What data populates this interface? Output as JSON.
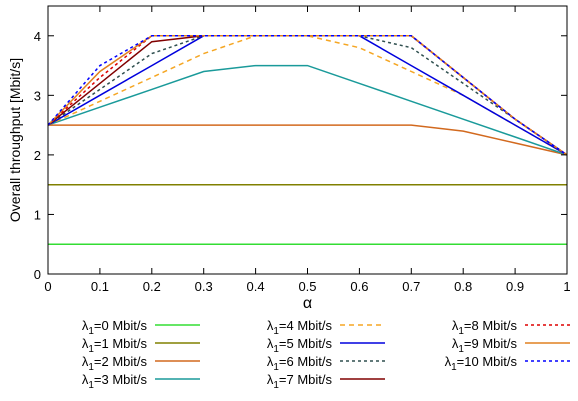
{
  "chart_data": {
    "type": "line",
    "title": "",
    "xlabel": "α",
    "ylabel": "Overall throughput [Mbit/s]",
    "xlim": [
      0,
      1
    ],
    "ylim": [
      0,
      4.5
    ],
    "xticks": [
      "0",
      "0.1",
      "0.2",
      "0.3",
      "0.4",
      "0.5",
      "0.6",
      "0.7",
      "0.8",
      "0.9",
      "1"
    ],
    "yticks": [
      "0",
      "1",
      "2",
      "3",
      "4"
    ],
    "x": [
      0,
      0.1,
      0.2,
      0.3,
      0.4,
      0.5,
      0.6,
      0.7,
      0.8,
      0.9,
      1
    ],
    "grid": false,
    "legend_position": "bottom",
    "series": [
      {
        "name": "λ1=0 Mbit/s",
        "sub": "1",
        "rest": "=0 Mbit/s",
        "color": "#33dd33",
        "dash": "solid",
        "values": [
          0.5,
          0.5,
          0.5,
          0.5,
          0.5,
          0.5,
          0.5,
          0.5,
          0.5,
          0.5,
          0.5
        ]
      },
      {
        "name": "λ1=1 Mbit/s",
        "sub": "1",
        "rest": "=1 Mbit/s",
        "color": "#808000",
        "dash": "solid",
        "values": [
          1.5,
          1.5,
          1.5,
          1.5,
          1.5,
          1.5,
          1.5,
          1.5,
          1.5,
          1.5,
          1.5
        ]
      },
      {
        "name": "λ1=2 Mbit/s",
        "sub": "1",
        "rest": "=2 Mbit/s",
        "color": "#d2691e",
        "dash": "solid",
        "values": [
          2.5,
          2.5,
          2.5,
          2.5,
          2.5,
          2.5,
          2.5,
          2.5,
          2.4,
          2.2,
          2.0
        ]
      },
      {
        "name": "λ1=3 Mbit/s",
        "sub": "1",
        "rest": "=3 Mbit/s",
        "color": "#1a9a9a",
        "dash": "solid",
        "values": [
          2.5,
          2.8,
          3.1,
          3.4,
          3.5,
          3.5,
          3.2,
          2.9,
          2.6,
          2.3,
          2.0
        ]
      },
      {
        "name": "λ1=4 Mbit/s",
        "sub": "1",
        "rest": "=4 Mbit/s",
        "color": "#f5a623",
        "dash": "dashed",
        "values": [
          2.5,
          2.9,
          3.3,
          3.7,
          4.0,
          4.0,
          3.8,
          3.4,
          3.0,
          2.5,
          2.0
        ]
      },
      {
        "name": "λ1=5 Mbit/s",
        "sub": "1",
        "rest": "=5 Mbit/s",
        "color": "#0000dd",
        "dash": "solid",
        "values": [
          2.5,
          3.0,
          3.5,
          4.0,
          4.0,
          4.0,
          4.0,
          3.5,
          3.0,
          2.5,
          2.0
        ]
      },
      {
        "name": "λ1=6 Mbit/s",
        "sub": "1",
        "rest": "=6 Mbit/s",
        "color": "#2f4f4f",
        "dash": "dotted",
        "values": [
          2.5,
          3.1,
          3.7,
          4.0,
          4.0,
          4.0,
          4.0,
          3.8,
          3.2,
          2.6,
          2.0
        ]
      },
      {
        "name": "λ1=7 Mbit/s",
        "sub": "1",
        "rest": "=7 Mbit/s",
        "color": "#800000",
        "dash": "solid",
        "values": [
          2.5,
          3.2,
          3.9,
          4.0,
          4.0,
          4.0,
          4.0,
          4.0,
          3.3,
          2.6,
          2.0
        ]
      },
      {
        "name": "λ1=8 Mbit/s",
        "sub": "1",
        "rest": "=8 Mbit/s",
        "color": "#dd0000",
        "dash": "dotted",
        "values": [
          2.5,
          3.3,
          4.0,
          4.0,
          4.0,
          4.0,
          4.0,
          4.0,
          3.3,
          2.6,
          2.0
        ]
      },
      {
        "name": "λ1=9 Mbit/s",
        "sub": "1",
        "rest": "=9 Mbit/s",
        "color": "#e08020",
        "dash": "solid",
        "values": [
          2.5,
          3.4,
          4.0,
          4.0,
          4.0,
          4.0,
          4.0,
          4.0,
          3.3,
          2.6,
          2.0
        ]
      },
      {
        "name": "λ1=10 Mbit/s",
        "sub": "1",
        "rest": "=10 Mbit/s",
        "color": "#0000ff",
        "dash": "dotted",
        "values": [
          2.5,
          3.5,
          4.0,
          4.0,
          4.0,
          4.0,
          4.0,
          4.0,
          3.3,
          2.6,
          2.0
        ]
      }
    ]
  }
}
